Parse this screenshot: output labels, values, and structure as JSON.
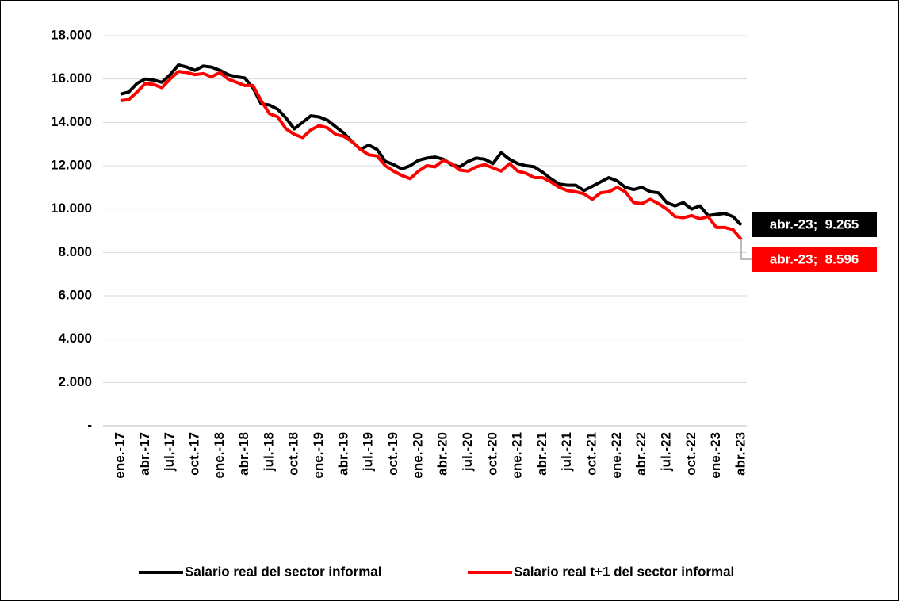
{
  "chart_data": {
    "type": "line",
    "categories": [
      "ene.-17",
      null,
      null,
      "abr.-17",
      null,
      null,
      "jul.-17",
      null,
      null,
      "oct.-17",
      null,
      null,
      "ene.-18",
      null,
      null,
      "abr.-18",
      null,
      null,
      "jul.-18",
      null,
      null,
      "oct.-18",
      null,
      null,
      "ene.-19",
      null,
      null,
      "abr.-19",
      null,
      null,
      "jul.-19",
      null,
      null,
      "oct.-19",
      null,
      null,
      "ene.-20",
      null,
      null,
      "abr.-20",
      null,
      null,
      "jul.-20",
      null,
      null,
      "oct.-20",
      null,
      null,
      "ene.-21",
      null,
      null,
      "abr.-21",
      null,
      null,
      "jul.-21",
      null,
      null,
      "oct.-21",
      null,
      null,
      "ene.-22",
      null,
      null,
      "abr.-22",
      null,
      null,
      "jul.-22",
      null,
      null,
      "oct.-22",
      null,
      null,
      "ene.-23",
      null,
      null,
      "abr.-23"
    ],
    "series": [
      {
        "name": "Salario real del sector informal",
        "color": "#000000",
        "values": [
          15300,
          15400,
          15800,
          16000,
          15950,
          15850,
          16200,
          16650,
          16550,
          16400,
          16600,
          16550,
          16400,
          16200,
          16100,
          16050,
          15600,
          14850,
          14800,
          14600,
          14200,
          13700,
          14000,
          14300,
          14250,
          14100,
          13800,
          13500,
          13100,
          12750,
          12950,
          12750,
          12200,
          12050,
          11850,
          12000,
          12250,
          12350,
          12400,
          12300,
          12050,
          11950,
          12200,
          12350,
          12300,
          12100,
          12600,
          12300,
          12100,
          12000,
          11950,
          11700,
          11400,
          11150,
          11100,
          11100,
          10850,
          11050,
          11250,
          11450,
          11300,
          11000,
          10900,
          11000,
          10800,
          10750,
          10300,
          10150,
          10300,
          10000,
          10150,
          9700,
          9750,
          9800,
          9650,
          9265
        ],
        "value_labels": [
          null,
          null,
          null,
          null,
          null,
          null,
          null,
          null,
          null,
          null,
          null,
          null,
          null,
          null,
          null,
          null,
          null,
          null,
          null,
          null,
          null,
          null,
          null,
          null,
          null,
          null,
          null,
          null,
          null,
          null,
          null,
          null,
          null,
          null,
          null,
          null,
          null,
          null,
          null,
          null,
          null,
          null,
          null,
          null,
          null,
          null,
          null,
          null,
          null,
          null,
          null,
          null,
          null,
          null,
          null,
          null,
          null,
          null,
          null,
          null,
          null,
          null,
          null,
          null,
          null,
          null,
          null,
          null,
          null,
          null,
          null,
          null,
          null,
          null,
          null,
          "abr.-23;  9.265"
        ]
      },
      {
        "name": "Salario real t+1 del sector informal",
        "color": "#ff0000",
        "values": [
          15000,
          15050,
          15400,
          15800,
          15750,
          15600,
          16000,
          16350,
          16300,
          16200,
          16250,
          16100,
          16300,
          16000,
          15850,
          15700,
          15700,
          15000,
          14400,
          14250,
          13700,
          13450,
          13300,
          13650,
          13850,
          13750,
          13450,
          13350,
          13100,
          12750,
          12500,
          12450,
          12000,
          11750,
          11550,
          11400,
          11750,
          12000,
          11950,
          12250,
          12100,
          11800,
          11750,
          11950,
          12050,
          11900,
          11750,
          12100,
          11750,
          11650,
          11450,
          11450,
          11250,
          11000,
          10850,
          10800,
          10700,
          10450,
          10750,
          10800,
          11000,
          10800,
          10300,
          10250,
          10450,
          10250,
          10000,
          9650,
          9600,
          9700,
          9550,
          9650,
          9150,
          9150,
          9050,
          8596
        ],
        "value_labels": [
          null,
          null,
          null,
          null,
          null,
          null,
          null,
          null,
          null,
          null,
          null,
          null,
          null,
          null,
          null,
          null,
          null,
          null,
          null,
          null,
          null,
          null,
          null,
          null,
          null,
          null,
          null,
          null,
          null,
          null,
          null,
          null,
          null,
          null,
          null,
          null,
          null,
          null,
          null,
          null,
          null,
          null,
          null,
          null,
          null,
          null,
          null,
          null,
          null,
          null,
          null,
          null,
          null,
          null,
          null,
          null,
          null,
          null,
          null,
          null,
          null,
          null,
          null,
          null,
          null,
          null,
          null,
          null,
          null,
          null,
          null,
          null,
          null,
          null,
          null,
          "abr.-23;  8.596"
        ]
      }
    ],
    "ylim": [
      0,
      18000
    ],
    "yticks": [
      {
        "value": 0,
        "label": "-"
      },
      {
        "value": 2000,
        "label": "2.000"
      },
      {
        "value": 4000,
        "label": "4.000"
      },
      {
        "value": 6000,
        "label": "6.000"
      },
      {
        "value": 8000,
        "label": "8.000"
      },
      {
        "value": 10000,
        "label": "10.000"
      },
      {
        "value": 12000,
        "label": "12.000"
      },
      {
        "value": 14000,
        "label": "14.000"
      },
      {
        "value": 16000,
        "label": "16.000"
      },
      {
        "value": 18000,
        "label": "18.000"
      }
    ],
    "grid": true,
    "legend": "bottom"
  }
}
